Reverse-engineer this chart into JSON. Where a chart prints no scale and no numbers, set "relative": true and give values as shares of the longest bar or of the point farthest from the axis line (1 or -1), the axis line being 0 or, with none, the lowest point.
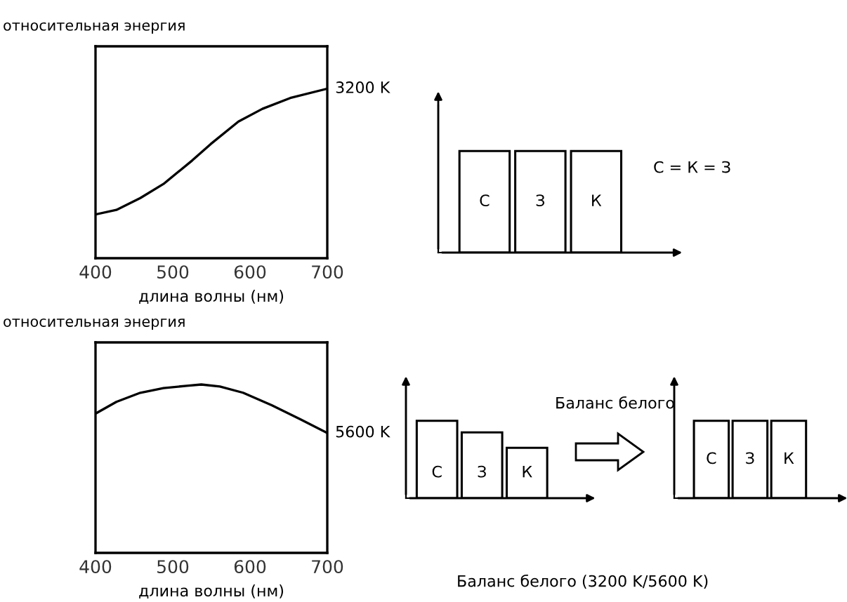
{
  "chart_data": [
    {
      "type": "line",
      "relative": true,
      "ylabel": "относительная энергия",
      "xlabel": "длина волны (нм)",
      "xlim": [
        400,
        700
      ],
      "xticks": [
        400,
        500,
        600,
        700
      ],
      "tick_labels": "x",
      "grid": false,
      "legend": false,
      "series": [
        {
          "color": "#000000",
          "x": [
            400,
            427,
            458,
            488,
            525,
            549,
            585,
            616,
            652,
            700
          ],
          "values": [
            0.258,
            0.285,
            0.355,
            0.438,
            0.576,
            0.673,
            0.806,
            0.881,
            0.945,
            1
          ]
        }
      ],
      "annotations": [
        {
          "text": "3200 K",
          "x": 700,
          "y": 1
        }
      ]
    },
    {
      "type": "bar",
      "relative": true,
      "categories": [
        "С",
        "З",
        "К"
      ],
      "tick_labels": false,
      "series": [
        {
          "color": "#ffffff",
          "values": [
            1,
            1,
            1
          ]
        }
      ],
      "annotations": [
        "С = К = З"
      ]
    },
    {
      "type": "line",
      "relative": true,
      "ylabel": "относительная энергия",
      "xlabel": "длина волны (нм)",
      "xlim": [
        400,
        700
      ],
      "xticks": [
        400,
        500,
        600,
        700
      ],
      "tick_labels": "x",
      "grid": false,
      "legend": false,
      "series": [
        {
          "color": "#000000",
          "x": [
            400,
            427,
            458,
            488,
            518,
            537,
            561,
            591,
            628,
            665,
            700
          ],
          "values": [
            0.827,
            0.897,
            0.951,
            0.979,
            0.992,
            1,
            0.988,
            0.951,
            0.877,
            0.794,
            0.712
          ]
        }
      ],
      "annotations": [
        {
          "text": "5600 K",
          "x": 700,
          "y": 0.712
        },
        "Баланс белого (3200 K/5600 K)"
      ]
    },
    {
      "type": "bar",
      "relative": true,
      "categories": [
        "С",
        "З",
        "К"
      ],
      "tick_labels": false,
      "series": [
        {
          "color": "#ffffff",
          "values": [
            1,
            0.85,
            0.65
          ]
        }
      ],
      "annotations": [
        "Баланс белого"
      ]
    },
    {
      "type": "bar",
      "relative": true,
      "categories": [
        "С",
        "З",
        "К"
      ],
      "tick_labels": false,
      "series": [
        {
          "color": "#ffffff",
          "values": [
            1,
            1,
            1
          ]
        }
      ]
    }
  ]
}
